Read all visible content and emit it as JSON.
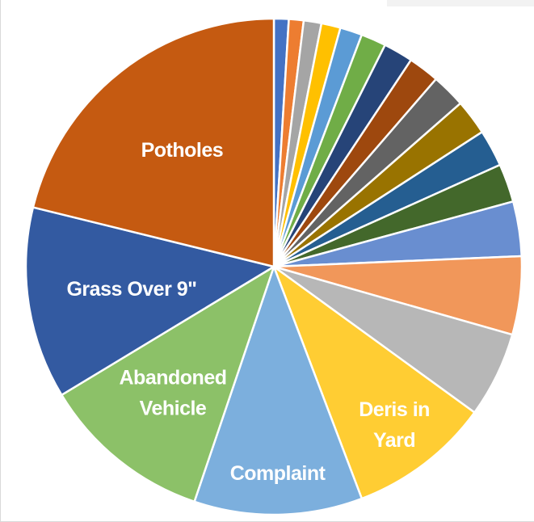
{
  "chart_data": {
    "type": "pie",
    "title": "",
    "legend": "none",
    "slices": [
      {
        "label": "",
        "value": 1.0,
        "color": "#4472c4"
      },
      {
        "label": "",
        "value": 1.0,
        "color": "#ed7d31"
      },
      {
        "label": "",
        "value": 1.2,
        "color": "#a5a5a5"
      },
      {
        "label": "",
        "value": 1.3,
        "color": "#ffc000"
      },
      {
        "label": "",
        "value": 1.5,
        "color": "#5b9bd5"
      },
      {
        "label": "",
        "value": 1.7,
        "color": "#70ad47"
      },
      {
        "label": "",
        "value": 2.0,
        "color": "#264478"
      },
      {
        "label": "",
        "value": 2.1,
        "color": "#9e480e"
      },
      {
        "label": "",
        "value": 2.3,
        "color": "#636363"
      },
      {
        "label": "",
        "value": 2.4,
        "color": "#997300"
      },
      {
        "label": "",
        "value": 2.5,
        "color": "#255e91"
      },
      {
        "label": "",
        "value": 2.6,
        "color": "#43682b"
      },
      {
        "label": "",
        "value": 3.7,
        "color": "#698ed0"
      },
      {
        "label": "",
        "value": 5.3,
        "color": "#f1975a"
      },
      {
        "label": "",
        "value": 5.8,
        "color": "#b7b7b7"
      },
      {
        "label": "Deris in Yard",
        "value": 9.6,
        "color": "#ffcd33"
      },
      {
        "label": "Complaint",
        "value": 11.4,
        "color": "#7cafdd"
      },
      {
        "label": "Abandoned Vehicle",
        "value": 11.6,
        "color": "#8cc168"
      },
      {
        "label": "Grass Over 9\"",
        "value": 13.0,
        "color": "#335aa1"
      },
      {
        "label": "Potholes",
        "value": 22.0,
        "color": "#c55a11"
      }
    ]
  }
}
